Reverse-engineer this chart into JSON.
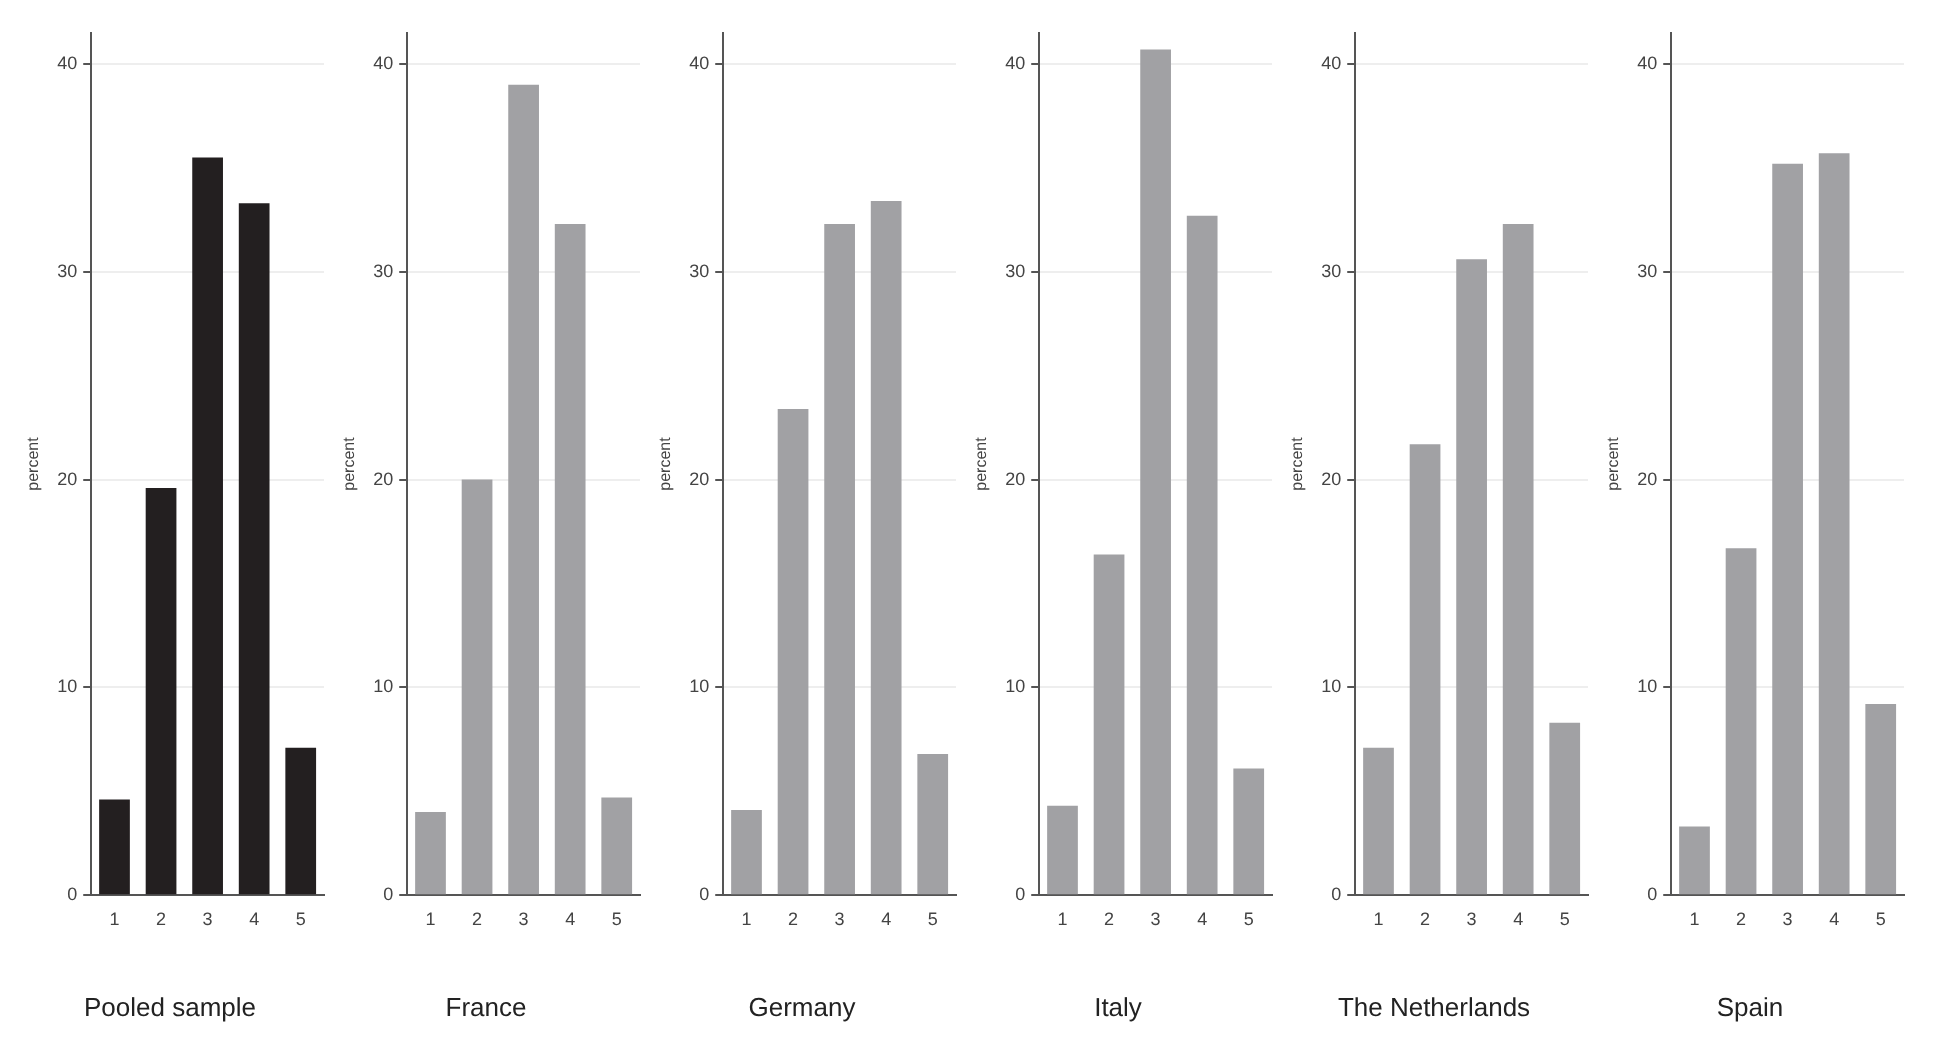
{
  "chart_data": [
    {
      "type": "bar",
      "title": "Pooled sample",
      "ylabel": "percent",
      "categories": [
        "1",
        "2",
        "3",
        "4",
        "5"
      ],
      "values": [
        4.6,
        19.6,
        35.5,
        33.3,
        7.1
      ],
      "color": "#231f20",
      "ylim": [
        0,
        41.5
      ],
      "yticks": [
        0,
        10,
        20,
        30,
        40
      ],
      "grid": "y"
    },
    {
      "type": "bar",
      "title": "France",
      "ylabel": "percent",
      "categories": [
        "1",
        "2",
        "3",
        "4",
        "5"
      ],
      "values": [
        4.0,
        20.0,
        39.0,
        32.3,
        4.7
      ],
      "color": "#a1a1a4",
      "ylim": [
        0,
        41.5
      ],
      "yticks": [
        0,
        10,
        20,
        30,
        40
      ],
      "grid": "y"
    },
    {
      "type": "bar",
      "title": "Germany",
      "ylabel": "percent",
      "categories": [
        "1",
        "2",
        "3",
        "4",
        "5"
      ],
      "values": [
        4.1,
        23.4,
        32.3,
        33.4,
        6.8
      ],
      "color": "#a1a1a4",
      "ylim": [
        0,
        41.5
      ],
      "yticks": [
        0,
        10,
        20,
        30,
        40
      ],
      "grid": "y"
    },
    {
      "type": "bar",
      "title": "Italy",
      "ylabel": "percent",
      "categories": [
        "1",
        "2",
        "3",
        "4",
        "5"
      ],
      "values": [
        4.3,
        16.4,
        40.7,
        32.7,
        6.1
      ],
      "color": "#a1a1a4",
      "ylim": [
        0,
        41.5
      ],
      "yticks": [
        0,
        10,
        20,
        30,
        40
      ],
      "grid": "y"
    },
    {
      "type": "bar",
      "title": "The Netherlands",
      "ylabel": "percent",
      "categories": [
        "1",
        "2",
        "3",
        "4",
        "5"
      ],
      "values": [
        7.1,
        21.7,
        30.6,
        32.3,
        8.3
      ],
      "color": "#a1a1a4",
      "ylim": [
        0,
        41.5
      ],
      "yticks": [
        0,
        10,
        20,
        30,
        40
      ],
      "grid": "y"
    },
    {
      "type": "bar",
      "title": "Spain",
      "ylabel": "percent",
      "categories": [
        "1",
        "2",
        "3",
        "4",
        "5"
      ],
      "values": [
        3.3,
        16.7,
        35.2,
        35.7,
        9.2
      ],
      "color": "#a1a1a4",
      "ylim": [
        0,
        41.5
      ],
      "yticks": [
        0,
        10,
        20,
        30,
        40
      ],
      "grid": "y"
    }
  ]
}
